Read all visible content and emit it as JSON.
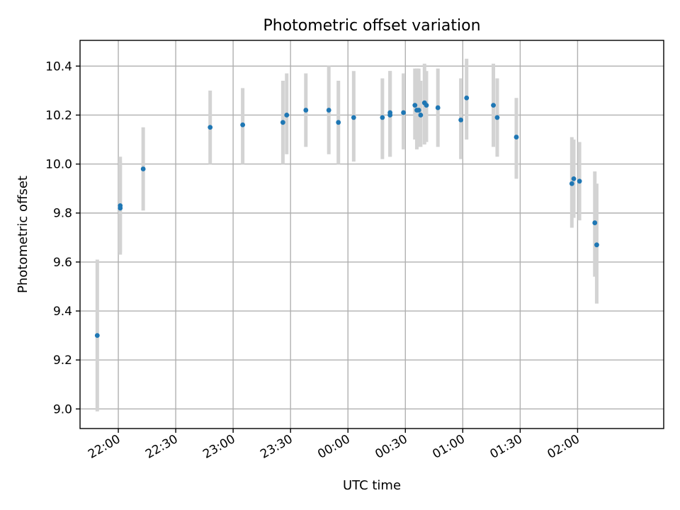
{
  "chart_data": {
    "type": "scatter",
    "title": "Photometric offset variation",
    "xlabel": "UTC time",
    "ylabel": "Photometric offset",
    "grid": true,
    "ylim": [
      8.92,
      10.505
    ],
    "y_ticks": [
      9.0,
      9.2,
      9.4,
      9.6,
      9.8,
      10.0,
      10.2,
      10.4
    ],
    "y_tick_labels": [
      "9.0",
      "9.2",
      "9.4",
      "9.6",
      "9.8",
      "10.0",
      "10.2",
      "10.4"
    ],
    "xlim": [
      "21:40",
      "02:45"
    ],
    "x_ticks": [
      "22:00",
      "22:30",
      "23:00",
      "23:30",
      "00:00",
      "00:30",
      "01:00",
      "01:30",
      "02:00"
    ],
    "x_tick_labels": [
      "22:00",
      "22:30",
      "23:00",
      "23:30",
      "00:00",
      "00:30",
      "01:00",
      "01:30",
      "02:00"
    ],
    "colors": {
      "marker": "#1f77b4",
      "errorbar": "#d3d3d3"
    },
    "points": [
      {
        "x": "21:49",
        "y": 9.3,
        "ylo": 8.99,
        "yhi": 9.61
      },
      {
        "x": "22:01",
        "y": 9.83,
        "ylo": 9.63,
        "yhi": 10.03
      },
      {
        "x": "22:01",
        "y": 9.82,
        "ylo": 9.64,
        "yhi": 10.01
      },
      {
        "x": "22:13",
        "y": 9.98,
        "ylo": 9.81,
        "yhi": 10.15
      },
      {
        "x": "22:48",
        "y": 10.15,
        "ylo": 10.0,
        "yhi": 10.3
      },
      {
        "x": "23:05",
        "y": 10.16,
        "ylo": 10.0,
        "yhi": 10.31
      },
      {
        "x": "23:26",
        "y": 10.17,
        "ylo": 10.0,
        "yhi": 10.34
      },
      {
        "x": "23:28",
        "y": 10.2,
        "ylo": 10.04,
        "yhi": 10.37
      },
      {
        "x": "23:38",
        "y": 10.22,
        "ylo": 10.07,
        "yhi": 10.37
      },
      {
        "x": "23:50",
        "y": 10.22,
        "ylo": 10.04,
        "yhi": 10.4
      },
      {
        "x": "23:55",
        "y": 10.17,
        "ylo": 10.0,
        "yhi": 10.34
      },
      {
        "x": "00:03",
        "y": 10.19,
        "ylo": 10.01,
        "yhi": 10.38
      },
      {
        "x": "00:18",
        "y": 10.19,
        "ylo": 10.02,
        "yhi": 10.35
      },
      {
        "x": "00:22",
        "y": 10.2,
        "ylo": 10.03,
        "yhi": 10.38
      },
      {
        "x": "00:22",
        "y": 10.21,
        "ylo": 10.03,
        "yhi": 10.38
      },
      {
        "x": "00:29",
        "y": 10.21,
        "ylo": 10.06,
        "yhi": 10.37
      },
      {
        "x": "00:35",
        "y": 10.24,
        "ylo": 10.1,
        "yhi": 10.39
      },
      {
        "x": "00:36",
        "y": 10.22,
        "ylo": 10.06,
        "yhi": 10.39
      },
      {
        "x": "00:37",
        "y": 10.22,
        "ylo": 10.07,
        "yhi": 10.39
      },
      {
        "x": "00:38",
        "y": 10.2,
        "ylo": 10.07,
        "yhi": 10.34
      },
      {
        "x": "00:40",
        "y": 10.25,
        "ylo": 10.08,
        "yhi": 10.41
      },
      {
        "x": "00:41",
        "y": 10.24,
        "ylo": 10.09,
        "yhi": 10.38
      },
      {
        "x": "00:47",
        "y": 10.23,
        "ylo": 10.07,
        "yhi": 10.39
      },
      {
        "x": "00:59",
        "y": 10.18,
        "ylo": 10.02,
        "yhi": 10.35
      },
      {
        "x": "01:02",
        "y": 10.27,
        "ylo": 10.1,
        "yhi": 10.43
      },
      {
        "x": "01:16",
        "y": 10.24,
        "ylo": 10.07,
        "yhi": 10.41
      },
      {
        "x": "01:18",
        "y": 10.19,
        "ylo": 10.03,
        "yhi": 10.35
      },
      {
        "x": "01:28",
        "y": 10.11,
        "ylo": 9.94,
        "yhi": 10.27
      },
      {
        "x": "01:57",
        "y": 9.92,
        "ylo": 9.74,
        "yhi": 10.11
      },
      {
        "x": "01:58",
        "y": 9.94,
        "ylo": 9.78,
        "yhi": 10.1
      },
      {
        "x": "02:01",
        "y": 9.93,
        "ylo": 9.77,
        "yhi": 10.09
      },
      {
        "x": "02:09",
        "y": 9.76,
        "ylo": 9.54,
        "yhi": 9.97
      },
      {
        "x": "02:10",
        "y": 9.67,
        "ylo": 9.43,
        "yhi": 9.92
      }
    ]
  }
}
